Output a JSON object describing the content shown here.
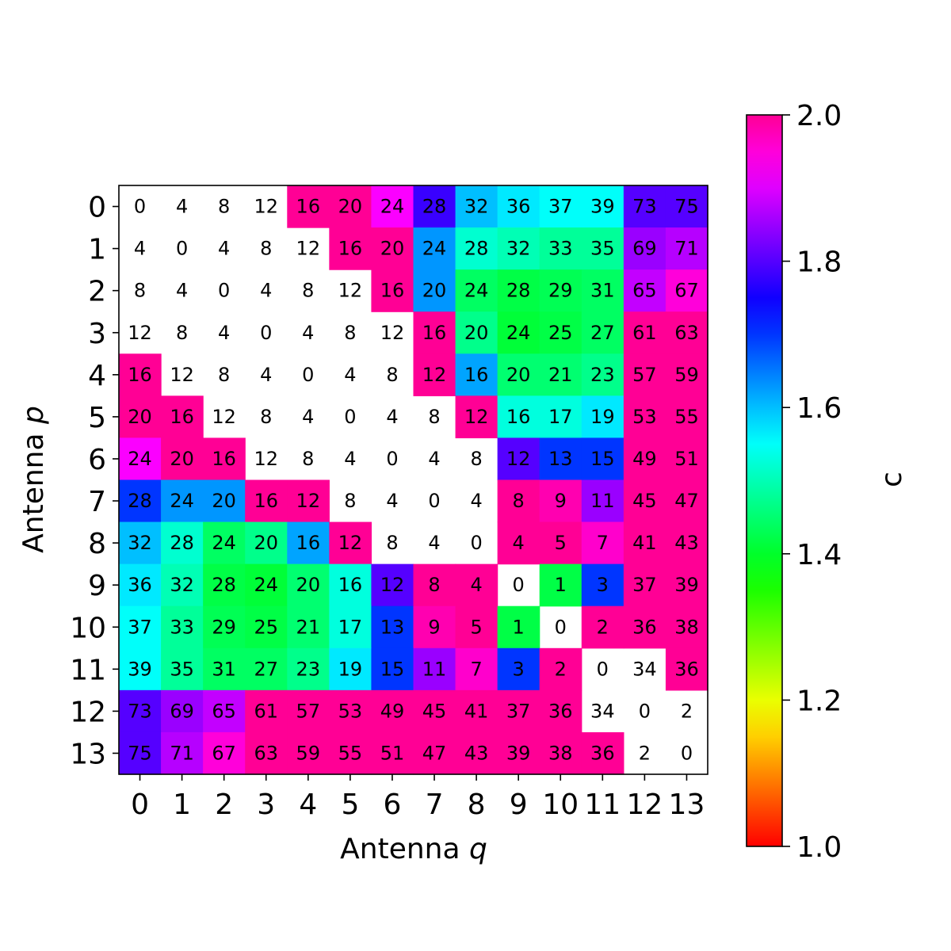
{
  "chart_data": {
    "type": "heatmap",
    "xlabel_text": "Antenna ",
    "xlabel_var": "q",
    "ylabel_text": "Antenna ",
    "ylabel_var": "p",
    "colorbar_label": "c",
    "x_ticks": [
      "0",
      "1",
      "2",
      "3",
      "4",
      "5",
      "6",
      "7",
      "8",
      "9",
      "10",
      "11",
      "12",
      "13"
    ],
    "y_ticks": [
      "0",
      "1",
      "2",
      "3",
      "4",
      "5",
      "6",
      "7",
      "8",
      "9",
      "10",
      "11",
      "12",
      "13"
    ],
    "colorbar_range": [
      1.0,
      2.0
    ],
    "colorbar_ticks": [
      "1.0",
      "1.2",
      "1.4",
      "1.6",
      "1.8",
      "2.0"
    ],
    "colormap": "gist_rainbow",
    "annotations": [
      [
        0,
        4,
        8,
        12,
        16,
        20,
        24,
        28,
        32,
        36,
        37,
        39,
        73,
        75
      ],
      [
        4,
        0,
        4,
        8,
        12,
        16,
        20,
        24,
        28,
        32,
        33,
        35,
        69,
        71
      ],
      [
        8,
        4,
        0,
        4,
        8,
        12,
        16,
        20,
        24,
        28,
        29,
        31,
        65,
        67
      ],
      [
        12,
        8,
        4,
        0,
        4,
        8,
        12,
        16,
        20,
        24,
        25,
        27,
        61,
        63
      ],
      [
        16,
        12,
        8,
        4,
        0,
        4,
        8,
        12,
        16,
        20,
        21,
        23,
        57,
        59
      ],
      [
        20,
        16,
        12,
        8,
        4,
        0,
        4,
        8,
        12,
        16,
        17,
        19,
        53,
        55
      ],
      [
        24,
        20,
        16,
        12,
        8,
        4,
        0,
        4,
        8,
        12,
        13,
        15,
        49,
        51
      ],
      [
        28,
        24,
        20,
        16,
        12,
        8,
        4,
        0,
        4,
        8,
        9,
        11,
        45,
        47
      ],
      [
        32,
        28,
        24,
        20,
        16,
        12,
        8,
        4,
        0,
        4,
        5,
        7,
        41,
        43
      ],
      [
        36,
        32,
        28,
        24,
        20,
        16,
        12,
        8,
        4,
        0,
        1,
        3,
        37,
        39
      ],
      [
        37,
        33,
        29,
        25,
        21,
        17,
        13,
        9,
        5,
        1,
        0,
        2,
        36,
        38
      ],
      [
        39,
        35,
        31,
        27,
        23,
        19,
        15,
        11,
        7,
        3,
        2,
        0,
        34,
        36
      ],
      [
        73,
        69,
        65,
        61,
        57,
        53,
        49,
        45,
        41,
        37,
        36,
        34,
        0,
        2
      ],
      [
        75,
        71,
        67,
        63,
        59,
        55,
        51,
        47,
        43,
        39,
        38,
        36,
        2,
        0
      ]
    ],
    "values": [
      [
        null,
        null,
        null,
        null,
        2.0,
        2.0,
        1.92,
        1.78,
        1.6,
        1.57,
        1.55,
        1.55,
        1.8,
        1.8
      ],
      [
        null,
        null,
        null,
        null,
        null,
        2.0,
        2.0,
        1.63,
        1.52,
        1.5,
        1.48,
        1.48,
        1.85,
        1.87
      ],
      [
        null,
        null,
        null,
        null,
        null,
        null,
        2.0,
        1.63,
        1.44,
        1.42,
        1.43,
        1.44,
        1.88,
        1.95
      ],
      [
        null,
        null,
        null,
        null,
        null,
        null,
        null,
        2.0,
        1.47,
        1.41,
        1.42,
        1.44,
        2.0,
        2.0
      ],
      [
        2.0,
        null,
        null,
        null,
        null,
        null,
        null,
        2.0,
        1.62,
        1.45,
        1.45,
        1.47,
        2.0,
        2.0
      ],
      [
        2.0,
        2.0,
        null,
        null,
        null,
        null,
        null,
        null,
        2.0,
        1.53,
        1.53,
        1.57,
        2.0,
        2.0
      ],
      [
        1.92,
        2.0,
        2.0,
        null,
        null,
        null,
        null,
        null,
        null,
        1.8,
        1.7,
        1.7,
        2.0,
        2.0
      ],
      [
        1.7,
        1.63,
        1.63,
        2.0,
        2.0,
        null,
        null,
        null,
        null,
        2.0,
        1.98,
        1.85,
        2.0,
        2.0
      ],
      [
        1.6,
        1.52,
        1.44,
        1.47,
        1.62,
        2.0,
        null,
        null,
        null,
        2.0,
        2.0,
        1.96,
        2.0,
        2.0
      ],
      [
        1.57,
        1.5,
        1.42,
        1.41,
        1.45,
        1.53,
        1.8,
        2.0,
        2.0,
        null,
        1.42,
        1.7,
        2.0,
        2.0
      ],
      [
        1.55,
        1.48,
        1.43,
        1.42,
        1.45,
        1.53,
        1.7,
        1.98,
        2.0,
        1.42,
        null,
        2.0,
        2.0,
        2.0
      ],
      [
        1.55,
        1.48,
        1.44,
        1.44,
        1.47,
        1.57,
        1.7,
        1.85,
        1.96,
        1.7,
        2.0,
        null,
        null,
        2.0
      ],
      [
        1.8,
        1.85,
        1.88,
        2.0,
        2.0,
        2.0,
        2.0,
        2.0,
        2.0,
        2.0,
        2.0,
        null,
        null,
        null
      ],
      [
        1.8,
        1.87,
        1.95,
        2.0,
        2.0,
        2.0,
        2.0,
        2.0,
        2.0,
        2.0,
        2.0,
        2.0,
        null,
        null
      ]
    ]
  }
}
